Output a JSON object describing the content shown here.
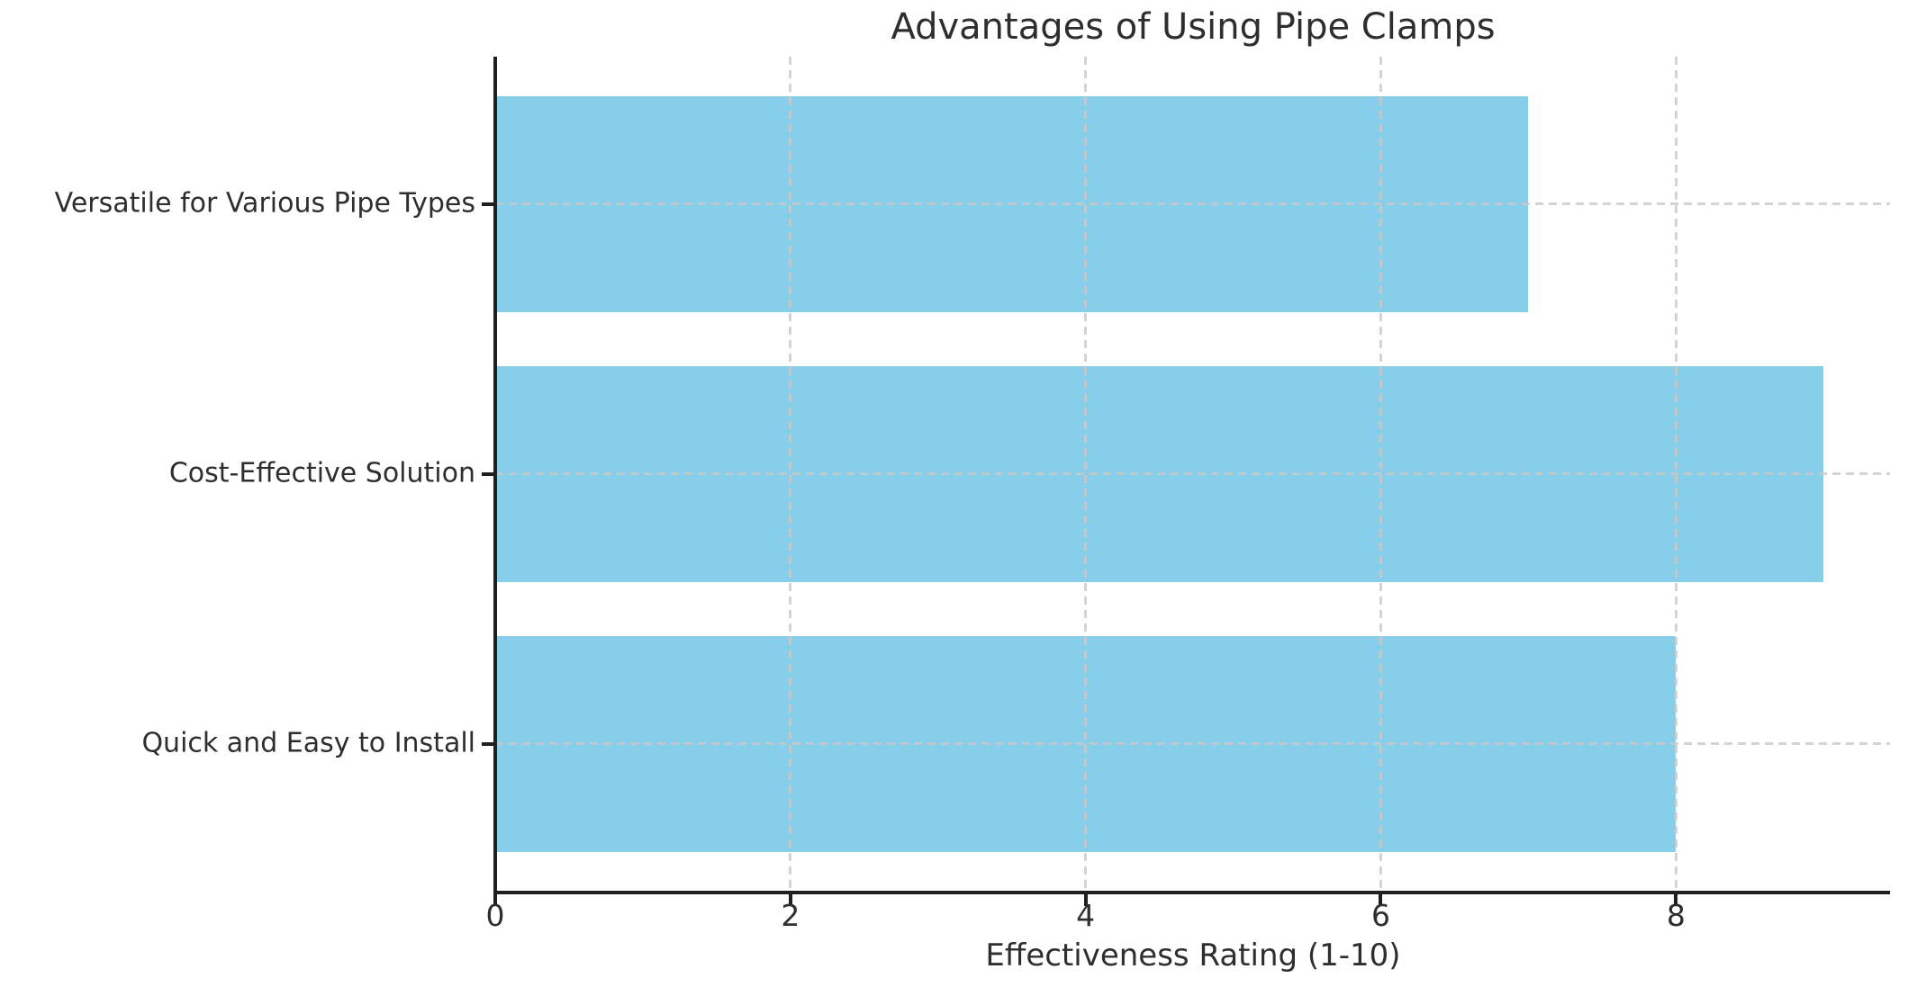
{
  "title": "Advantages of Using Pipe Clamps",
  "chart_data": {
    "type": "bar",
    "orientation": "horizontal",
    "title": "Advantages of Using Pipe Clamps",
    "categories": [
      "Versatile for Various Pipe Types",
      "Cost-Effective Solution",
      "Quick and Easy to Install"
    ],
    "values": [
      7,
      9,
      8
    ],
    "xlabel": "Effectiveness Rating (1-10)",
    "ylabel": "",
    "xticks": [
      "0",
      "2",
      "4",
      "6",
      "8"
    ],
    "xtick_values": [
      0,
      2,
      4,
      6,
      8
    ],
    "xlim": [
      0,
      9.45
    ],
    "grid": "dashed, both axes, drawn over bars",
    "legend": "none",
    "category_order": "top-to-bottom",
    "colors": {
      "bar": "#87CEEB",
      "text": "#2e2e2e",
      "axis": "#1f1f1f",
      "grid": "#c9c9c9",
      "background": "#ffffff"
    }
  }
}
